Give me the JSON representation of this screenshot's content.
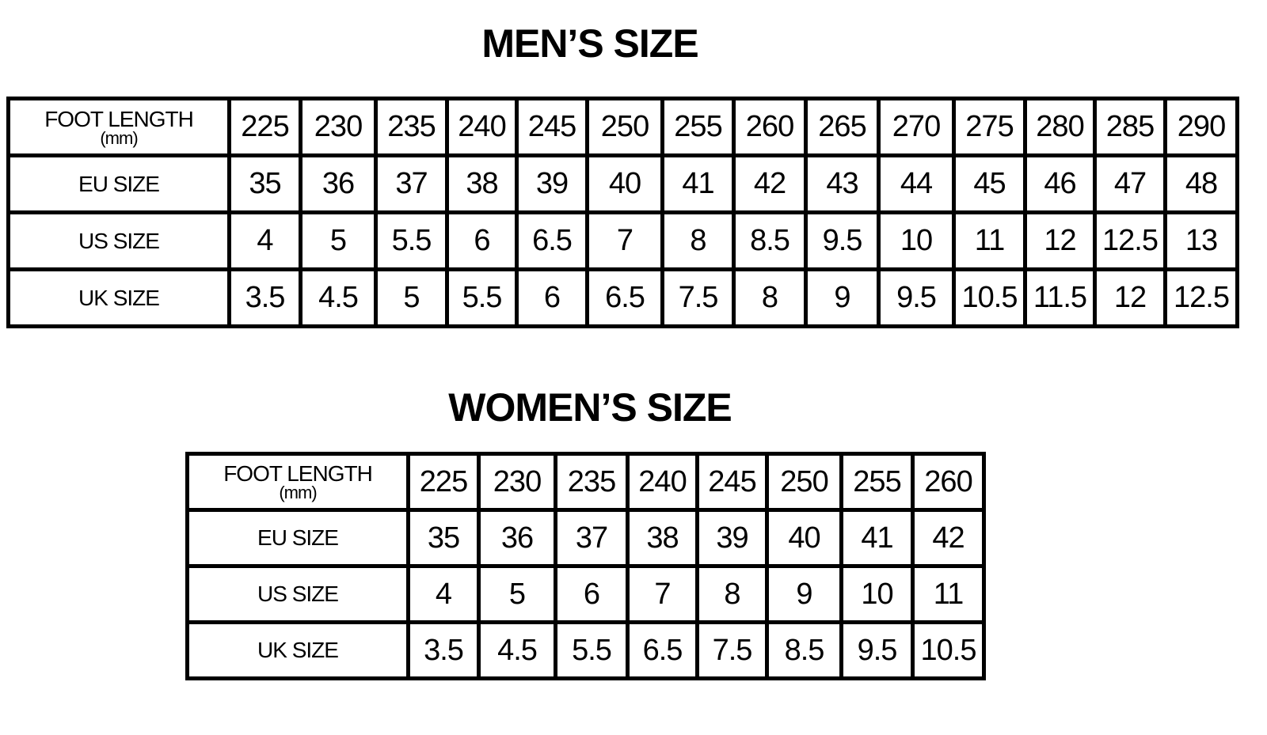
{
  "men": {
    "title": "MEN’S SIZE",
    "rows": [
      {
        "label": "FOOT LENGTH",
        "sublabel": "(mm)",
        "values": [
          "225",
          "230",
          "235",
          "240",
          "245",
          "250",
          "255",
          "260",
          "265",
          "270",
          "275",
          "280",
          "285",
          "290"
        ]
      },
      {
        "label": "EU SIZE",
        "values": [
          "35",
          "36",
          "37",
          "38",
          "39",
          "40",
          "41",
          "42",
          "43",
          "44",
          "45",
          "46",
          "47",
          "48"
        ]
      },
      {
        "label": "US SIZE",
        "values": [
          "4",
          "5",
          "5.5",
          "6",
          "6.5",
          "7",
          "8",
          "8.5",
          "9.5",
          "10",
          "11",
          "12",
          "12.5",
          "13"
        ]
      },
      {
        "label": "UK SIZE",
        "values": [
          "3.5",
          "4.5",
          "5",
          "5.5",
          "6",
          "6.5",
          "7.5",
          "8",
          "9",
          "9.5",
          "10.5",
          "11.5",
          "12",
          "12.5"
        ]
      }
    ]
  },
  "women": {
    "title": "WOMEN’S SIZE",
    "rows": [
      {
        "label": "FOOT LENGTH",
        "sublabel": "(mm)",
        "values": [
          "225",
          "230",
          "235",
          "240",
          "245",
          "250",
          "255",
          "260"
        ]
      },
      {
        "label": "EU SIZE",
        "values": [
          "35",
          "36",
          "37",
          "38",
          "39",
          "40",
          "41",
          "42"
        ]
      },
      {
        "label": "US SIZE",
        "values": [
          "4",
          "5",
          "6",
          "7",
          "8",
          "9",
          "10",
          "11"
        ]
      },
      {
        "label": "UK SIZE",
        "values": [
          "3.5",
          "4.5",
          "5.5",
          "6.5",
          "7.5",
          "8.5",
          "9.5",
          "10.5"
        ]
      }
    ]
  }
}
